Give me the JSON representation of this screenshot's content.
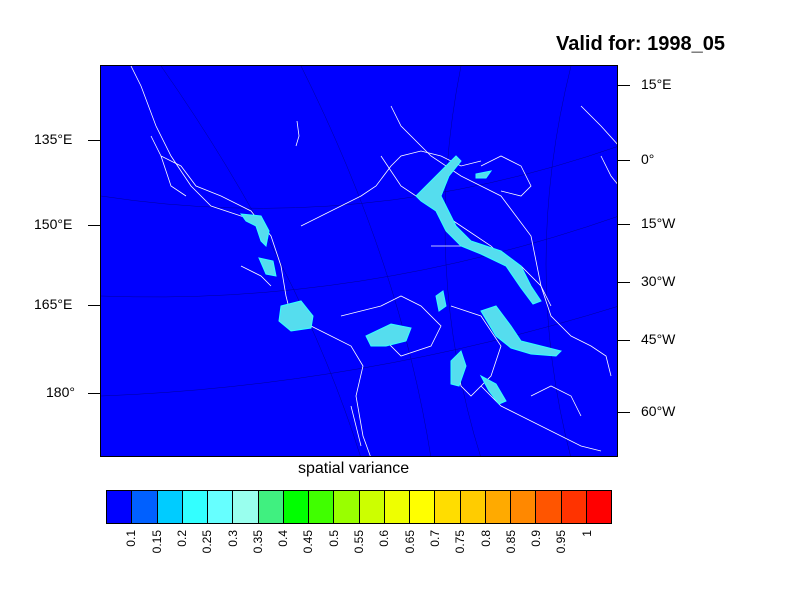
{
  "title": "Valid for: 1998_05",
  "xlabel": "spatial variance",
  "left_lat_labels": [
    "135°E",
    "150°E",
    "165°E",
    "180°"
  ],
  "right_lat_labels": [
    "15°E",
    "0°",
    "15°W",
    "30°W",
    "45°W",
    "60°W"
  ],
  "colorbar": {
    "colors": [
      "#0000ff",
      "#0060ff",
      "#00ccff",
      "#33ffff",
      "#66ffff",
      "#99ffee",
      "#40f080",
      "#00ff00",
      "#40ff00",
      "#99ff00",
      "#ccff00",
      "#eeff00",
      "#ffff00",
      "#ffdd00",
      "#ffcc00",
      "#ffaa00",
      "#ff8800",
      "#ff5500",
      "#ff3300",
      "#ff0000"
    ],
    "labels": [
      "0.1",
      "0.15",
      "0.2",
      "0.25",
      "0.3",
      "0.35",
      "0.4",
      "0.45",
      "0.5",
      "0.55",
      "0.6",
      "0.65",
      "0.7",
      "0.75",
      "0.8",
      "0.85",
      "0.9",
      "0.95",
      "1"
    ]
  }
}
